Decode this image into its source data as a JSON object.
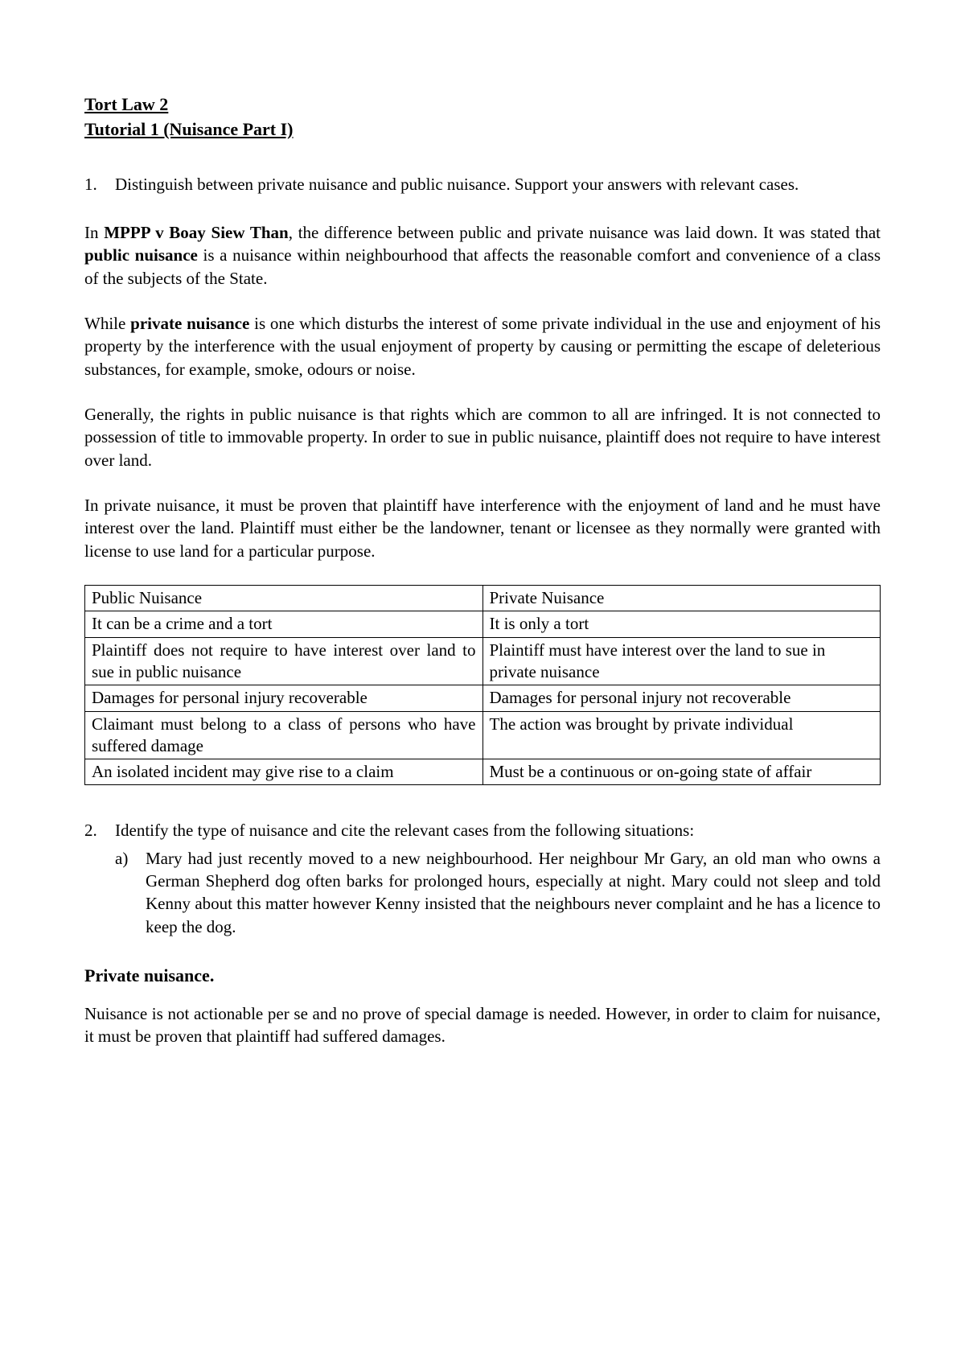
{
  "title": {
    "line1": "Tort Law 2",
    "line2": "Tutorial 1 (Nuisance Part I)"
  },
  "question1": {
    "number": "1.",
    "text": "Distinguish between private nuisance and public nuisance. Support your answers with relevant cases."
  },
  "para1": {
    "prefix": "In ",
    "case": "MPPP v Boay Siew Than",
    "mid": ", the difference between public and private nuisance was laid down. It was stated that ",
    "term": "public nuisance",
    "suffix": " is a nuisance within neighbourhood that affects the reasonable comfort and convenience of a class of the subjects of the State."
  },
  "para2": {
    "prefix": "While ",
    "term": "private nuisance",
    "suffix": " is one which  disturbs  the  interest  of  some  private individual in the use and enjoyment of his property by the interference with the usual enjoyment of property by causing or permitting the escape of deleterious substances, for example, smoke, odours or noise."
  },
  "para3": "Generally, the rights in public nuisance is that rights which are common to all are infringed. It  is  not  connected  to  possession  of  title  to  immovable property. In order to sue in public nuisance, plaintiff does not require to have interest over land.",
  "para4": "In private nuisance, it must be proven that plaintiff have interference with the enjoyment of land and he must have interest over the land. Plaintiff must either be the landowner, tenant or licensee as they normally were granted with license to use land for a particular purpose.",
  "table": {
    "rows": [
      {
        "left": "Public Nuisance",
        "right": "Private Nuisance"
      },
      {
        "left": "It can be a crime and a tort",
        "right": "It is only a tort"
      },
      {
        "left": "Plaintiff does not require to have interest over land to sue in public nuisance",
        "right": "Plaintiff must have interest over the land to sue in private nuisance"
      },
      {
        "left": "Damages for personal injury recoverable",
        "right": "Damages for personal injury not recoverable"
      },
      {
        "left": "Claimant must belong to a class of persons who have suffered damage",
        "right": "The action was brought by private individual"
      },
      {
        "left": "An isolated incident may give rise to a claim",
        "right": "Must be a continuous or on-going state of affair"
      }
    ]
  },
  "question2": {
    "number": "2.",
    "text": "Identify the type of nuisance and cite the relevant cases from the following situations:",
    "sub_letter": "a)",
    "sub_text": "Mary had just recently moved to a new neighbourhood. Her neighbour Mr Gary, an old man who owns a German Shepherd dog often barks for prolonged hours, especially at night. Mary could not sleep and told Kenny about this matter however Kenny insisted that the neighbours never complaint and he has a licence to keep the dog."
  },
  "heading2": "Private nuisance.",
  "para5": "Nuisance is not actionable per se and no prove of special damage is needed. However, in order to claim for nuisance, it must be proven that plaintiff had suffered damages."
}
